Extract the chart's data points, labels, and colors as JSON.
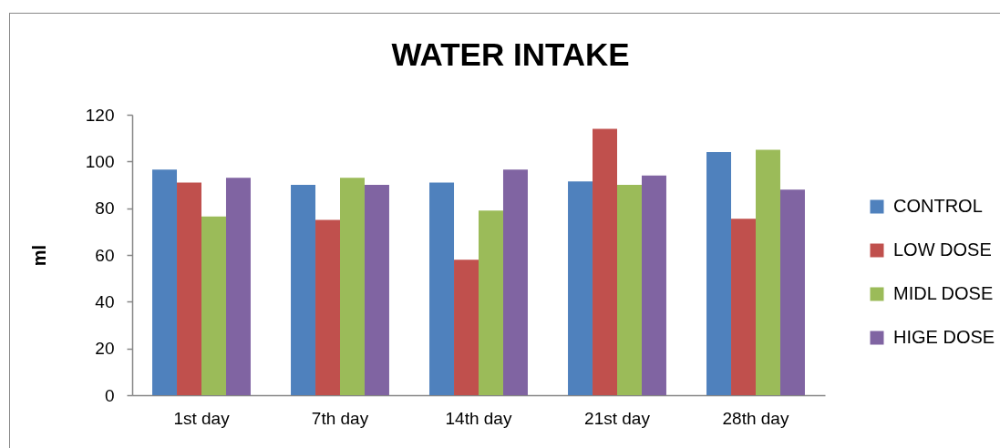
{
  "chart_data": {
    "type": "bar",
    "title": "WATER INTAKE",
    "ylabel": "ml",
    "categories": [
      "1st day",
      "7th day",
      "14th day",
      "21st day",
      "28th day"
    ],
    "series": [
      {
        "name": "CONTROL",
        "color": "#4f81bd",
        "values": [
          96.5,
          90,
          91,
          91.5,
          104
        ]
      },
      {
        "name": "LOW DOSE",
        "color": "#c0504d",
        "values": [
          91,
          75,
          58,
          114,
          75.5
        ]
      },
      {
        "name": "MIDL DOSE",
        "color": "#9bbb59",
        "values": [
          76.5,
          93,
          79,
          90,
          105
        ]
      },
      {
        "name": "HIGE DOSE",
        "color": "#8064a2",
        "values": [
          93,
          90,
          96.5,
          94,
          88
        ]
      }
    ],
    "ylim": [
      0,
      120
    ],
    "yticks": [
      0,
      20,
      40,
      60,
      80,
      100,
      120
    ],
    "grid": false,
    "legend": "right"
  }
}
